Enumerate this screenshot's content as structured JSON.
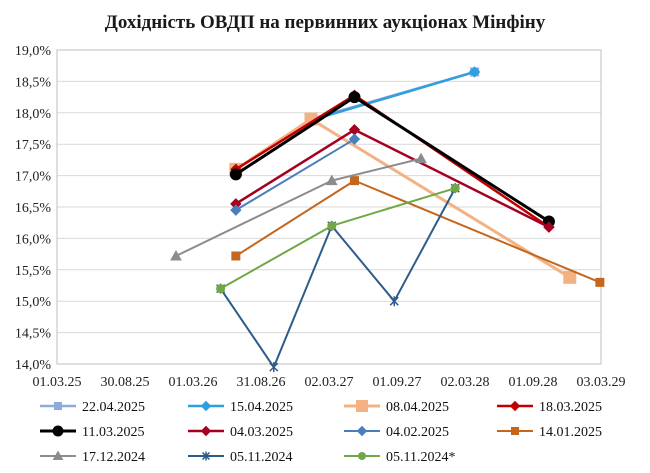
{
  "chart_data": {
    "type": "line",
    "title": "Дохідність ОВДП на первинних аукціонах Мінфіну",
    "xlabel": "",
    "ylabel": "",
    "xlim": [
      "2025-03-01",
      "2029-03-03"
    ],
    "ylim": [
      14.0,
      19.0
    ],
    "x_ticks": [
      "01.03.25",
      "30.08.25",
      "01.03.26",
      "31.08.26",
      "02.03.27",
      "01.09.27",
      "02.03.28",
      "01.09.28",
      "03.03.29"
    ],
    "y_ticks": [
      "14,0%",
      "14,5%",
      "15,0%",
      "15,5%",
      "16,0%",
      "16,5%",
      "17,0%",
      "17,5%",
      "18,0%",
      "18,5%",
      "19,0%"
    ],
    "grid": "horizontal",
    "legend_position": "bottom",
    "series": [
      {
        "name": "22.04.2025",
        "color": "#8eaadb",
        "marker": "square",
        "width": 2.5,
        "points": [
          [
            "2027-01-13",
            17.9
          ],
          [
            "2028-03-28",
            18.65
          ]
        ]
      },
      {
        "name": "15.04.2025",
        "color": "#2f9fe0",
        "marker": "diamond",
        "width": 2.5,
        "points": [
          [
            "2027-01-13",
            17.88
          ],
          [
            "2028-03-28",
            18.65
          ]
        ]
      },
      {
        "name": "08.04.2025",
        "color": "#f4b183",
        "marker": "square",
        "width": 3,
        "points": [
          [
            "2026-06-25",
            17.1
          ],
          [
            "2027-01-13",
            17.9
          ],
          [
            "2028-12-09",
            15.38
          ]
        ]
      },
      {
        "name": "18.03.2025",
        "color": "#c00000",
        "marker": "diamond",
        "width": 2.5,
        "points": [
          [
            "2026-06-25",
            17.1
          ],
          [
            "2027-05-10",
            18.28
          ],
          [
            "2028-10-14",
            16.18
          ]
        ]
      },
      {
        "name": "11.03.2025",
        "color": "#000000",
        "marker": "circle",
        "width": 3,
        "points": [
          [
            "2026-06-25",
            17.02
          ],
          [
            "2027-05-10",
            18.25
          ],
          [
            "2028-10-14",
            16.27
          ]
        ]
      },
      {
        "name": "04.03.2025",
        "color": "#a50021",
        "marker": "diamond",
        "width": 2.5,
        "points": [
          [
            "2026-06-25",
            16.55
          ],
          [
            "2027-05-10",
            17.73
          ],
          [
            "2028-10-14",
            16.18
          ]
        ]
      },
      {
        "name": "04.02.2025",
        "color": "#4a7ebb",
        "marker": "diamond",
        "width": 2,
        "points": [
          [
            "2026-06-25",
            16.45
          ],
          [
            "2027-05-10",
            17.58
          ]
        ]
      },
      {
        "name": "14.01.2025",
        "color": "#c5661d",
        "marker": "square",
        "width": 2,
        "points": [
          [
            "2026-06-25",
            15.72
          ],
          [
            "2027-05-10",
            16.92
          ],
          [
            "2029-02-28",
            15.3
          ]
        ]
      },
      {
        "name": "17.12.2024",
        "color": "#8c8c8c",
        "marker": "triangle",
        "width": 2,
        "points": [
          [
            "2026-01-15",
            15.72
          ],
          [
            "2027-03-10",
            16.92
          ],
          [
            "2027-11-05",
            17.27
          ]
        ]
      },
      {
        "name": "05.11.2024",
        "color": "#2e5c8a",
        "marker": "star",
        "width": 2,
        "points": [
          [
            "2026-05-15",
            15.2
          ],
          [
            "2026-10-05",
            13.95
          ],
          [
            "2027-03-10",
            16.2
          ],
          [
            "2027-08-25",
            15.0
          ],
          [
            "2028-02-05",
            16.8
          ]
        ]
      },
      {
        "name": "05.11.2024*",
        "color": "#70a845",
        "marker": "circle",
        "width": 2,
        "points": [
          [
            "2026-05-15",
            15.2
          ],
          [
            "2027-03-10",
            16.2
          ],
          [
            "2028-02-05",
            16.8
          ]
        ]
      }
    ]
  }
}
